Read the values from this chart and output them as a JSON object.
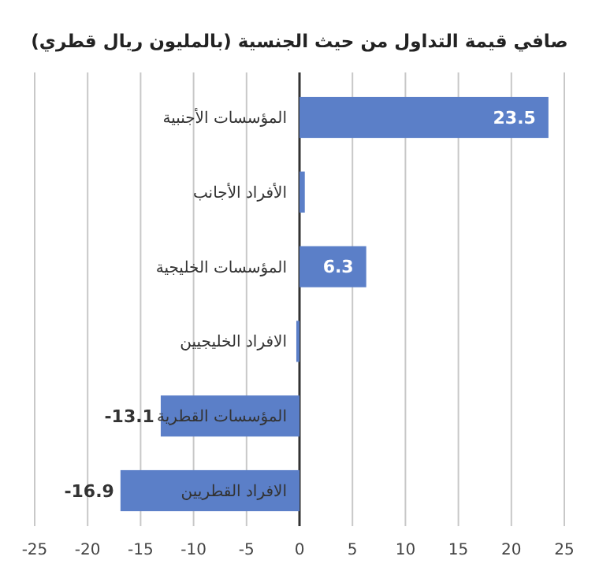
{
  "chart_data": {
    "type": "bar",
    "orientation": "horizontal",
    "title": "صافي قيمة التداول من حيث الجنسية (بالمليون ريال قطري)",
    "categories": [
      "المؤسسات الأجنبية",
      "الأفراد الأجانب",
      "المؤسسات الخليجية",
      "الافراد الخليجيين",
      "المؤسسات القطرية",
      "الافراد القطريين"
    ],
    "values": [
      23.5,
      0.5,
      6.3,
      -0.3,
      -13.1,
      -16.9
    ],
    "value_labels": [
      "23.5",
      null,
      "6.3",
      null,
      "-13.1",
      "-16.9"
    ],
    "color": "#5b7fc8",
    "xlim": [
      -25,
      25
    ],
    "xticks": [
      -25,
      -20,
      -15,
      -10,
      -5,
      0,
      5,
      10,
      15,
      20,
      25
    ],
    "grid": "x"
  }
}
